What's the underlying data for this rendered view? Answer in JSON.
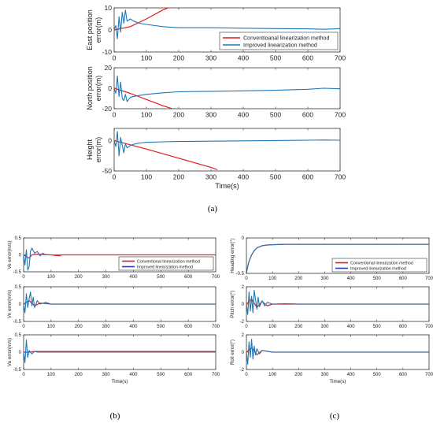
{
  "figure": {
    "captions": [
      "(a)",
      "(b)",
      "(c)"
    ],
    "colors": {
      "conventional": "#e41a1c",
      "improved": "#1f77b4",
      "improved_dark": "#1f3fb4"
    }
  },
  "chart_data": [
    {
      "id": "a1",
      "group": "a",
      "type": "line",
      "ylabel": [
        "East position",
        "error(m)"
      ],
      "xlabel": "",
      "xlim": [
        0,
        700
      ],
      "ylim": [
        -10,
        10
      ],
      "xticks": [
        0,
        100,
        200,
        300,
        400,
        500,
        600,
        700
      ],
      "yticks": [
        -10,
        0,
        10
      ],
      "legend": {
        "placement": "right",
        "entries": [
          "Conventioanal linearization method",
          "Improved linearization method"
        ]
      },
      "series": [
        {
          "name": "Conventioanal linearization method",
          "color": "#e41a1c",
          "x": [
            0,
            50,
            100,
            150,
            200
          ],
          "y": [
            0,
            1.5,
            5,
            9,
            12
          ]
        },
        {
          "name": "Improved linearization method",
          "color": "#1f77b4",
          "x": [
            0,
            5,
            10,
            15,
            20,
            25,
            30,
            35,
            40,
            50,
            60,
            80,
            100,
            150,
            200,
            300,
            400,
            500,
            600,
            650,
            700
          ],
          "y": [
            0,
            2,
            -4,
            6,
            -1,
            8,
            3,
            9,
            4,
            5,
            4,
            3,
            2.5,
            1.5,
            1,
            1,
            0.8,
            0.6,
            0.5,
            0.3,
            0.6
          ]
        }
      ]
    },
    {
      "id": "a2",
      "group": "a",
      "type": "line",
      "ylabel": [
        "North position",
        "error(m)"
      ],
      "xlabel": "",
      "xlim": [
        0,
        700
      ],
      "ylim": [
        -20,
        20
      ],
      "xticks": [
        0,
        100,
        200,
        300,
        400,
        500,
        600,
        700
      ],
      "yticks": [
        -20,
        0,
        20
      ],
      "series": [
        {
          "name": "Conventioanal linearization method",
          "color": "#e41a1c",
          "x": [
            0,
            50,
            100,
            150,
            200
          ],
          "y": [
            0,
            -5,
            -11,
            -17,
            -22
          ]
        },
        {
          "name": "Improved linearization method",
          "color": "#1f77b4",
          "x": [
            0,
            5,
            10,
            15,
            20,
            25,
            30,
            35,
            40,
            50,
            60,
            80,
            100,
            150,
            200,
            300,
            400,
            500,
            600,
            650,
            700
          ],
          "y": [
            0,
            -5,
            12,
            -8,
            6,
            -10,
            -12,
            -6,
            -13,
            -9,
            -8,
            -7,
            -6,
            -4.5,
            -3.5,
            -3,
            -2.5,
            -2,
            -1,
            0,
            -0.5
          ]
        }
      ]
    },
    {
      "id": "a3",
      "group": "a",
      "type": "line",
      "ylabel": [
        "Height",
        "error(m)"
      ],
      "xlabel": "Time(s)",
      "xlim": [
        0,
        700
      ],
      "ylim": [
        -50,
        20
      ],
      "xticks": [
        0,
        100,
        200,
        300,
        400,
        500,
        600,
        700
      ],
      "yticks": [
        -50,
        0
      ],
      "series": [
        {
          "name": "Conventioanal linearization method",
          "color": "#e41a1c",
          "x": [
            0,
            100,
            200,
            300,
            320
          ],
          "y": [
            0,
            -14,
            -29,
            -44,
            -48
          ]
        },
        {
          "name": "Improved linearization method",
          "color": "#1f77b4",
          "x": [
            0,
            5,
            10,
            15,
            20,
            25,
            30,
            35,
            40,
            50,
            60,
            80,
            100,
            150,
            200,
            300,
            400,
            500,
            600,
            650,
            700
          ],
          "y": [
            0,
            -10,
            15,
            -25,
            5,
            -8,
            -20,
            -5,
            -12,
            -8,
            -6,
            -4,
            -3,
            -2,
            -1.5,
            -1,
            -0.5,
            0,
            0.5,
            1,
            0.5
          ]
        }
      ]
    },
    {
      "id": "b1",
      "group": "b",
      "type": "line",
      "ylabel": [
        "Ve error(m/s)"
      ],
      "xlabel": "",
      "xlim": [
        0,
        700
      ],
      "ylim": [
        -0.5,
        0.5
      ],
      "xticks": [
        0,
        100,
        200,
        300,
        400,
        500,
        600,
        700
      ],
      "yticks": [
        -0.5,
        0,
        0.5
      ],
      "legend": {
        "placement": "right",
        "entries": [
          "Conventional linearization method",
          "Improved linearization method"
        ]
      },
      "series": [
        {
          "name": "Conventional linearization method",
          "color": "#e41a1c",
          "x": [
            0,
            10,
            20,
            30,
            50,
            100,
            130,
            140,
            200,
            300,
            700
          ],
          "y": [
            0,
            -0.05,
            -0.1,
            0,
            0.02,
            0,
            -0.03,
            0,
            0,
            0,
            0
          ]
        },
        {
          "name": "Improved linearization method",
          "color": "#1f77b4",
          "x": [
            0,
            5,
            10,
            15,
            20,
            25,
            30,
            40,
            50,
            60,
            70,
            80,
            100,
            200,
            300,
            400,
            500,
            600,
            700
          ],
          "y": [
            0,
            -0.3,
            0.15,
            -0.45,
            -0.35,
            0.1,
            0.2,
            0.05,
            0.1,
            -0.03,
            0.05,
            0,
            0,
            0,
            0,
            0,
            0,
            0,
            0
          ]
        }
      ]
    },
    {
      "id": "b2",
      "group": "b",
      "type": "line",
      "ylabel": [
        "Vn error(m/s)"
      ],
      "xlabel": "",
      "xlim": [
        0,
        700
      ],
      "ylim": [
        -0.5,
        0.5
      ],
      "xticks": [
        0,
        100,
        200,
        300,
        400,
        500,
        600,
        700
      ],
      "yticks": [
        -0.5,
        0,
        0.5
      ],
      "series": [
        {
          "name": "Conventional linearization method",
          "color": "#e41a1c",
          "x": [
            0,
            20,
            40,
            60,
            100,
            700
          ],
          "y": [
            0,
            0.1,
            -0.05,
            0.03,
            0,
            0
          ]
        },
        {
          "name": "Improved linearization method",
          "color": "#1f77b4",
          "x": [
            0,
            5,
            10,
            15,
            20,
            25,
            30,
            35,
            40,
            50,
            60,
            80,
            100,
            200,
            700
          ],
          "y": [
            0,
            -0.25,
            0.3,
            -0.1,
            0.15,
            0.35,
            -0.05,
            0.2,
            -0.1,
            0.1,
            0,
            0.05,
            0,
            0,
            0
          ]
        }
      ]
    },
    {
      "id": "b3",
      "group": "b",
      "type": "line",
      "ylabel": [
        "Vu error(m/s)"
      ],
      "xlabel": "Time(s)",
      "xlim": [
        0,
        700
      ],
      "ylim": [
        -0.5,
        0.5
      ],
      "xticks": [
        0,
        100,
        200,
        300,
        400,
        500,
        600,
        700
      ],
      "yticks": [
        -0.5,
        0,
        0.5
      ],
      "series": [
        {
          "name": "Conventional linearization method",
          "color": "#e41a1c",
          "x": [
            0,
            20,
            40,
            100,
            200,
            300,
            400,
            500,
            600,
            700
          ],
          "y": [
            0,
            0,
            0.02,
            0.02,
            0.02,
            0.02,
            0.02,
            0.02,
            0.02,
            0.02
          ]
        },
        {
          "name": "Improved linearization method",
          "color": "#1f77b4",
          "x": [
            0,
            5,
            10,
            15,
            20,
            30,
            40,
            50,
            100,
            200,
            300,
            400,
            500,
            600,
            700
          ],
          "y": [
            0,
            -0.3,
            0.35,
            -0.15,
            0.05,
            -0.05,
            0.02,
            0,
            0,
            0,
            0,
            0,
            0,
            0,
            0
          ]
        }
      ]
    },
    {
      "id": "c1",
      "group": "c",
      "type": "line",
      "ylabel": [
        "Heading error(°)"
      ],
      "xlabel": "",
      "xlim": [
        0,
        700
      ],
      "ylim": [
        -0.5,
        0
      ],
      "xticks": [
        0,
        100,
        200,
        300,
        400,
        500,
        600,
        700
      ],
      "yticks": [
        -0.5,
        0
      ],
      "legend": {
        "placement": "right",
        "entries": [
          "Conventional linearization method",
          "Improved linearization method"
        ]
      },
      "series": [
        {
          "name": "Conventional linearization method",
          "color": "#e41a1c",
          "x": [
            0,
            5,
            10,
            20,
            30,
            40,
            60,
            80,
            100,
            150,
            200,
            300,
            400,
            500,
            600,
            700
          ],
          "y": [
            -0.5,
            -0.4,
            -0.33,
            -0.24,
            -0.18,
            -0.14,
            -0.11,
            -0.1,
            -0.095,
            -0.09,
            -0.09,
            -0.09,
            -0.09,
            -0.09,
            -0.09,
            -0.09
          ]
        },
        {
          "name": "Improved linearization method",
          "color": "#1f77b4",
          "x": [
            0,
            5,
            10,
            20,
            30,
            40,
            60,
            80,
            100,
            150,
            200,
            300,
            400,
            500,
            600,
            700
          ],
          "y": [
            -0.5,
            -0.4,
            -0.33,
            -0.24,
            -0.18,
            -0.14,
            -0.11,
            -0.1,
            -0.095,
            -0.09,
            -0.09,
            -0.09,
            -0.09,
            -0.09,
            -0.09,
            -0.09
          ]
        }
      ]
    },
    {
      "id": "c2",
      "group": "c",
      "type": "line",
      "ylabel": [
        "Pitch error(°)"
      ],
      "xlabel": "",
      "xlim": [
        0,
        700
      ],
      "ylim": [
        -2,
        2
      ],
      "xticks": [
        0,
        100,
        200,
        300,
        400,
        500,
        600,
        700
      ],
      "yticks": [
        -2,
        0,
        2
      ],
      "series": [
        {
          "name": "Conventional linearization method",
          "color": "#e41a1c",
          "x": [
            0,
            20,
            40,
            60,
            80,
            100,
            150,
            700
          ],
          "y": [
            0,
            0.6,
            -0.4,
            0.3,
            -0.2,
            0,
            0,
            0
          ]
        },
        {
          "name": "Improved linearization method",
          "color": "#1f77b4",
          "x": [
            0,
            5,
            10,
            15,
            20,
            25,
            30,
            35,
            40,
            45,
            50,
            60,
            70,
            80,
            100,
            150,
            200,
            700
          ],
          "y": [
            0,
            -1.2,
            1.4,
            -0.8,
            0.9,
            -1.0,
            1.6,
            0.5,
            -0.6,
            0.8,
            -0.3,
            0.4,
            -0.2,
            0.2,
            0,
            0.05,
            0,
            0
          ]
        }
      ]
    },
    {
      "id": "c3",
      "group": "c",
      "type": "line",
      "ylabel": [
        "Roll error(°)"
      ],
      "xlabel": "Time(s)",
      "xlim": [
        0,
        700
      ],
      "ylim": [
        -2,
        2
      ],
      "xticks": [
        0,
        100,
        200,
        300,
        400,
        500,
        600,
        700
      ],
      "yticks": [
        -2,
        0,
        2
      ],
      "series": [
        {
          "name": "Conventional linearization method",
          "color": "#e41a1c",
          "x": [
            0,
            20,
            40,
            60,
            100,
            150,
            700
          ],
          "y": [
            0,
            0.5,
            -0.3,
            0.2,
            0,
            0,
            0
          ]
        },
        {
          "name": "Improved linearization method",
          "color": "#1f77b4",
          "x": [
            0,
            5,
            10,
            15,
            20,
            25,
            30,
            35,
            40,
            50,
            60,
            80,
            100,
            150,
            700
          ],
          "y": [
            0,
            -1.4,
            1.2,
            -0.6,
            1.5,
            -0.8,
            0.7,
            -0.3,
            0.4,
            -0.2,
            0.2,
            0.1,
            0,
            0,
            0
          ]
        }
      ]
    }
  ]
}
